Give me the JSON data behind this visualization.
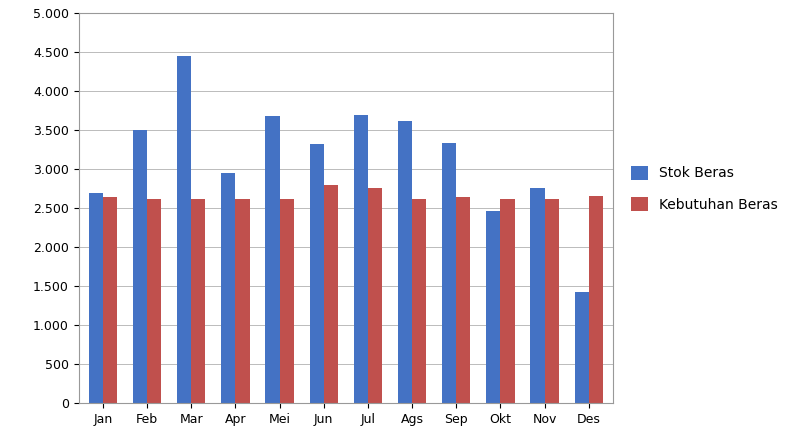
{
  "months": [
    "Jan",
    "Feb",
    "Mar",
    "Apr",
    "Mei",
    "Jun",
    "Jul",
    "Ags",
    "Sep",
    "Okt",
    "Nov",
    "Des"
  ],
  "stok_beras": [
    2700,
    3500,
    4450,
    2950,
    3680,
    3330,
    3700,
    3620,
    3340,
    2470,
    2760,
    1430
  ],
  "kebutuhan_beras": [
    2640,
    2620,
    2620,
    2620,
    2620,
    2800,
    2760,
    2620,
    2650,
    2620,
    2620,
    2660
  ],
  "stok_color": "#4472C4",
  "kebutuhan_color": "#C0504D",
  "ylim": [
    0,
    5000
  ],
  "yticks": [
    0,
    500,
    1000,
    1500,
    2000,
    2500,
    3000,
    3500,
    4000,
    4500,
    5000
  ],
  "legend_labels": [
    "Stok Beras",
    "Kebutuhan Beras"
  ],
  "background_color": "#ffffff",
  "grid_color": "#bbbbbb",
  "bar_width": 0.32,
  "figsize": [
    7.86,
    4.48
  ],
  "dpi": 100
}
